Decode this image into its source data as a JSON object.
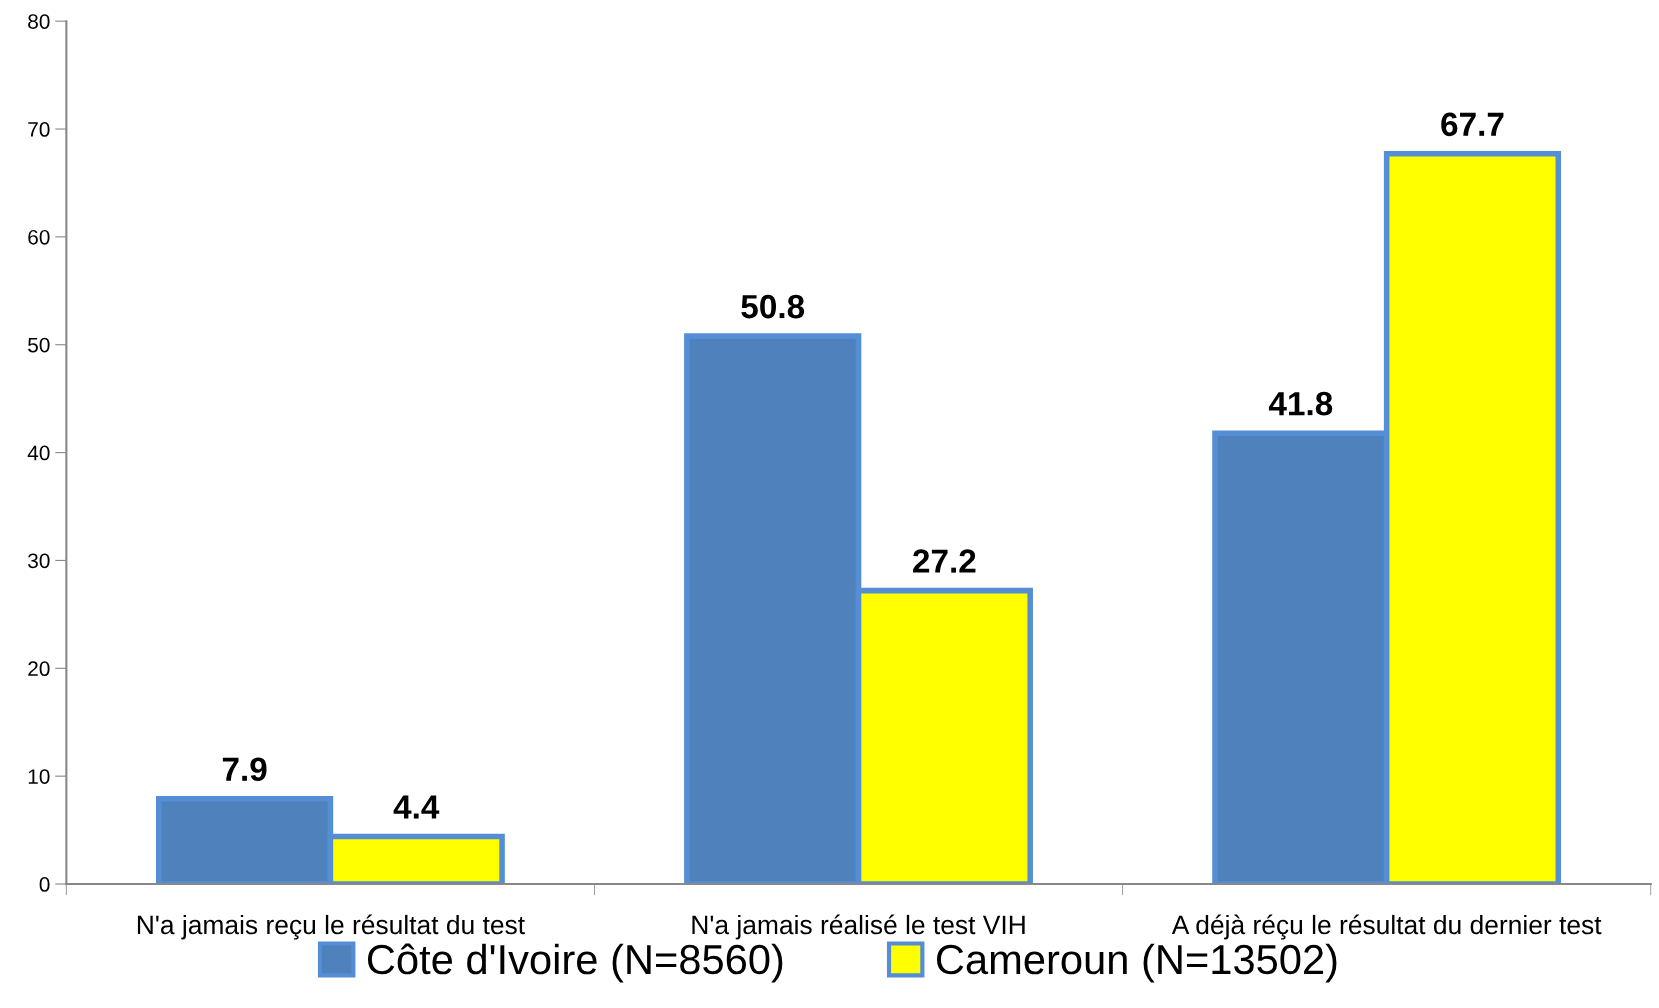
{
  "chart_data": {
    "type": "bar",
    "categories": [
      "N'a jamais reçu le résultat du test",
      "N'a jamais réalisé le test VIH",
      "A déjà réçu le résultat du dernier test"
    ],
    "series": [
      {
        "name": "Côte d'Ivoire (N=8560)",
        "color": "#4f81bd",
        "values": [
          7.9,
          50.8,
          41.8
        ]
      },
      {
        "name": "Cameroun (N=13502)",
        "color": "#ffff00",
        "values": [
          4.4,
          27.2,
          67.7
        ]
      }
    ],
    "ylim": [
      0,
      80
    ],
    "yticks": [
      0,
      10,
      20,
      30,
      40,
      50,
      60,
      70,
      80
    ],
    "data_labels": true,
    "grid": false,
    "legend": "bottom"
  }
}
